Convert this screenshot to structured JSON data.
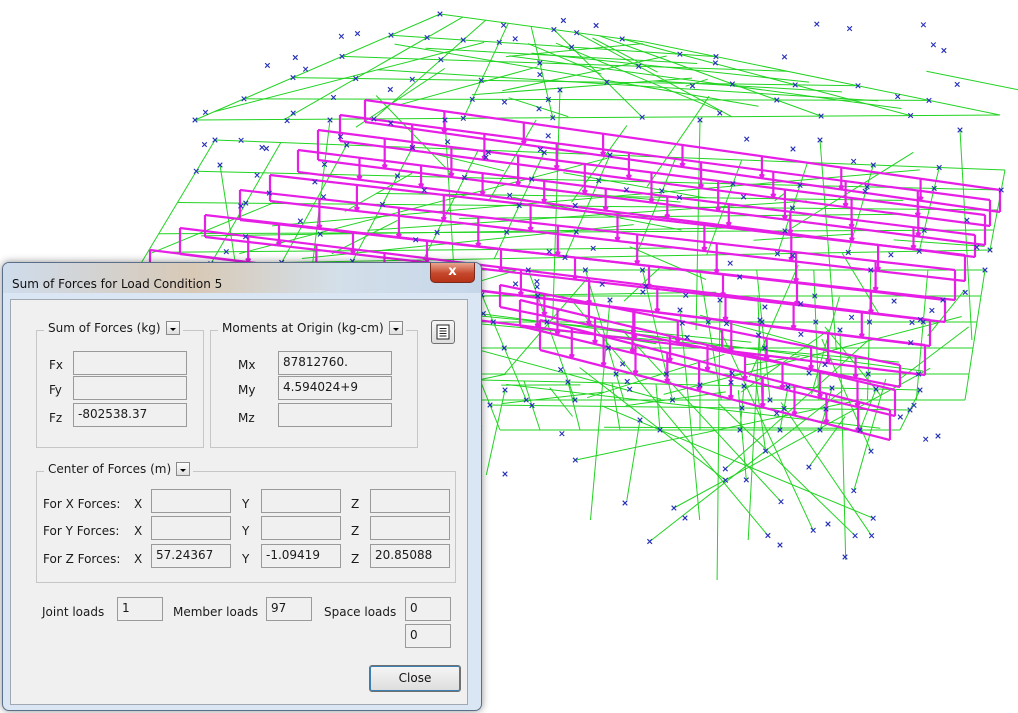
{
  "dialog": {
    "title": "Sum of Forces for Load Condition 5",
    "close_glyph": "x",
    "sum_forces": {
      "legend": "Sum of Forces (kg)",
      "fx_label": "Fx",
      "fx_value": "",
      "fy_label": "Fy",
      "fy_value": "",
      "fz_label": "Fz",
      "fz_value": "-802538.37"
    },
    "moments": {
      "legend": "Moments at Origin (kg-cm)",
      "mx_label": "Mx",
      "mx_value": "87812760.",
      "my_label": "My",
      "my_value": "4.594024+9",
      "mz_label": "Mz",
      "mz_value": ""
    },
    "center": {
      "legend": "Center of Forces (m)",
      "rows": [
        {
          "label": "For X Forces:",
          "x_label": "X",
          "x": "",
          "y_label": "Y",
          "y": "",
          "z_label": "Z",
          "z": ""
        },
        {
          "label": "For Y Forces:",
          "x_label": "X",
          "x": "",
          "y_label": "Y",
          "y": "",
          "z_label": "Z",
          "z": ""
        },
        {
          "label": "For Z Forces:",
          "x_label": "X",
          "x": "57.24367",
          "y_label": "Y",
          "y": "-1.09419",
          "z_label": "Z",
          "z": "20.85088"
        }
      ]
    },
    "loads": {
      "joint_label": "Joint loads",
      "joint_value": "1",
      "member_label": "Member loads",
      "member_value": "97",
      "space_label": "Space loads",
      "space_value_1": "0",
      "space_value_2": "0"
    },
    "close_button": "Close",
    "icons": {
      "dropdown": "dropdown-arrow-icon",
      "report": "report-icon",
      "close": "close-icon"
    }
  },
  "colors": {
    "frame_lines": "#22d322",
    "joint_marks": "#2530b8",
    "load_diagrams": "#e61ee6",
    "dialog_frame": "#dbe6f4",
    "close_button": "#c5472c"
  }
}
